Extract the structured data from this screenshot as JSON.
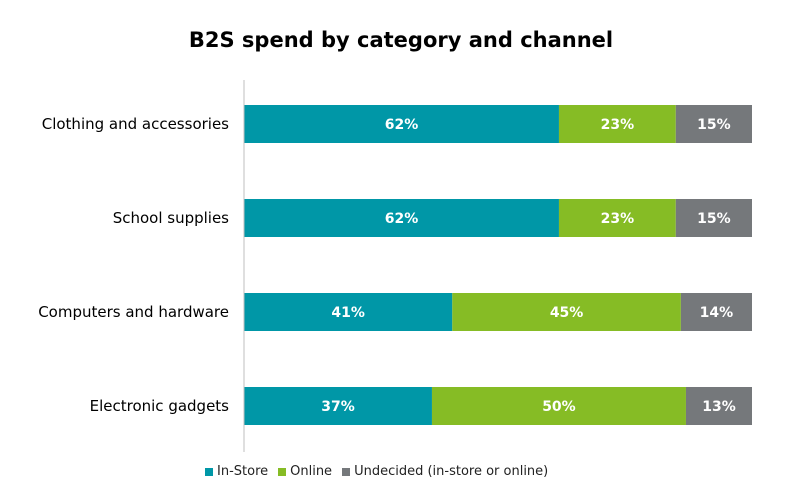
{
  "chart_data": {
    "type": "bar",
    "orientation": "horizontal",
    "stacked": true,
    "title": "B2S spend by category and channel",
    "categories": [
      "Clothing and accessories",
      "School supplies",
      "Computers and hardware",
      "Electronic gadgets"
    ],
    "series": [
      {
        "name": "In-Store",
        "values": [
          62,
          62,
          41,
          37
        ],
        "color": "#0097a7"
      },
      {
        "name": "Online",
        "values": [
          23,
          23,
          45,
          50
        ],
        "color": "#86bc25"
      },
      {
        "name": "Undecided (in-store or online)",
        "values": [
          15,
          15,
          14,
          13
        ],
        "color": "#75787b"
      }
    ],
    "value_suffix": "%",
    "xlim": [
      0,
      100
    ],
    "grid": false,
    "legend_position": "bottom-left",
    "data_label_color": "#ffffff"
  }
}
